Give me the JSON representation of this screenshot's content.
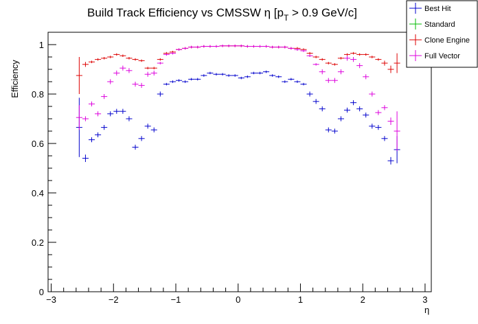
{
  "chart_data": {
    "type": "scatter",
    "title_main": "Build Track Efficiency vs CMSSW η [p",
    "title_sub": "T",
    "title_tail": " > 0.9 GeV/c]",
    "xlabel": "η",
    "ylabel": "Efficiency",
    "xlim": [
      -3.05,
      3.1
    ],
    "ylim": [
      0,
      1.05
    ],
    "x_ticks": [
      "−3",
      "−2",
      "−1",
      "0",
      "1",
      "2",
      "3"
    ],
    "y_ticks": [
      "0",
      "0.2",
      "0.4",
      "0.6",
      "0.8",
      "1"
    ],
    "x_bin_half_width": 0.05,
    "legend_position": "top-right",
    "series": [
      {
        "name": "Best Hit",
        "color": "#0000cc",
        "points": [
          {
            "x": -2.55,
            "y": 0.665,
            "err": 0.12
          },
          {
            "x": -2.45,
            "y": 0.54,
            "err": 0.015
          },
          {
            "x": -2.35,
            "y": 0.615,
            "err": 0.01
          },
          {
            "x": -2.25,
            "y": 0.635,
            "err": 0.01
          },
          {
            "x": -2.15,
            "y": 0.665,
            "err": 0.01
          },
          {
            "x": -2.05,
            "y": 0.72,
            "err": 0.01
          },
          {
            "x": -1.95,
            "y": 0.73,
            "err": 0.01
          },
          {
            "x": -1.85,
            "y": 0.73,
            "err": 0.01
          },
          {
            "x": -1.75,
            "y": 0.7,
            "err": 0.01
          },
          {
            "x": -1.65,
            "y": 0.585,
            "err": 0.01
          },
          {
            "x": -1.55,
            "y": 0.62,
            "err": 0.01
          },
          {
            "x": -1.45,
            "y": 0.67,
            "err": 0.01
          },
          {
            "x": -1.35,
            "y": 0.655,
            "err": 0.01
          },
          {
            "x": -1.25,
            "y": 0.8,
            "err": 0.01
          },
          {
            "x": -1.15,
            "y": 0.84,
            "err": 0.005
          },
          {
            "x": -1.05,
            "y": 0.85,
            "err": 0.005
          },
          {
            "x": -0.95,
            "y": 0.855,
            "err": 0.005
          },
          {
            "x": -0.85,
            "y": 0.85,
            "err": 0.005
          },
          {
            "x": -0.75,
            "y": 0.86,
            "err": 0.005
          },
          {
            "x": -0.65,
            "y": 0.86,
            "err": 0.005
          },
          {
            "x": -0.55,
            "y": 0.875,
            "err": 0.005
          },
          {
            "x": -0.45,
            "y": 0.885,
            "err": 0.005
          },
          {
            "x": -0.35,
            "y": 0.88,
            "err": 0.005
          },
          {
            "x": -0.25,
            "y": 0.88,
            "err": 0.005
          },
          {
            "x": -0.15,
            "y": 0.875,
            "err": 0.005
          },
          {
            "x": -0.05,
            "y": 0.875,
            "err": 0.005
          },
          {
            "x": 0.05,
            "y": 0.865,
            "err": 0.005
          },
          {
            "x": 0.15,
            "y": 0.87,
            "err": 0.005
          },
          {
            "x": 0.25,
            "y": 0.885,
            "err": 0.005
          },
          {
            "x": 0.35,
            "y": 0.885,
            "err": 0.005
          },
          {
            "x": 0.45,
            "y": 0.89,
            "err": 0.005
          },
          {
            "x": 0.55,
            "y": 0.875,
            "err": 0.005
          },
          {
            "x": 0.65,
            "y": 0.87,
            "err": 0.005
          },
          {
            "x": 0.75,
            "y": 0.85,
            "err": 0.005
          },
          {
            "x": 0.85,
            "y": 0.86,
            "err": 0.005
          },
          {
            "x": 0.95,
            "y": 0.85,
            "err": 0.005
          },
          {
            "x": 1.05,
            "y": 0.84,
            "err": 0.005
          },
          {
            "x": 1.15,
            "y": 0.8,
            "err": 0.01
          },
          {
            "x": 1.25,
            "y": 0.77,
            "err": 0.01
          },
          {
            "x": 1.35,
            "y": 0.74,
            "err": 0.01
          },
          {
            "x": 1.45,
            "y": 0.655,
            "err": 0.01
          },
          {
            "x": 1.55,
            "y": 0.65,
            "err": 0.01
          },
          {
            "x": 1.65,
            "y": 0.7,
            "err": 0.01
          },
          {
            "x": 1.75,
            "y": 0.735,
            "err": 0.01
          },
          {
            "x": 1.85,
            "y": 0.765,
            "err": 0.01
          },
          {
            "x": 1.95,
            "y": 0.74,
            "err": 0.01
          },
          {
            "x": 2.05,
            "y": 0.715,
            "err": 0.01
          },
          {
            "x": 2.15,
            "y": 0.67,
            "err": 0.01
          },
          {
            "x": 2.25,
            "y": 0.665,
            "err": 0.01
          },
          {
            "x": 2.35,
            "y": 0.62,
            "err": 0.01
          },
          {
            "x": 2.45,
            "y": 0.53,
            "err": 0.015
          },
          {
            "x": 2.55,
            "y": 0.575,
            "err": 0.055
          }
        ]
      },
      {
        "name": "Standard",
        "color": "#00bb00",
        "points": []
      },
      {
        "name": "Clone Engine",
        "color": "#dd0000",
        "points": [
          {
            "x": -2.55,
            "y": 0.875,
            "err": 0.075
          },
          {
            "x": -2.45,
            "y": 0.92,
            "err": 0.01
          },
          {
            "x": -2.35,
            "y": 0.93,
            "err": 0.005
          },
          {
            "x": -2.25,
            "y": 0.94,
            "err": 0.005
          },
          {
            "x": -2.15,
            "y": 0.945,
            "err": 0.005
          },
          {
            "x": -2.05,
            "y": 0.95,
            "err": 0.005
          },
          {
            "x": -1.95,
            "y": 0.96,
            "err": 0.005
          },
          {
            "x": -1.85,
            "y": 0.955,
            "err": 0.005
          },
          {
            "x": -1.75,
            "y": 0.945,
            "err": 0.005
          },
          {
            "x": -1.65,
            "y": 0.94,
            "err": 0.005
          },
          {
            "x": -1.55,
            "y": 0.935,
            "err": 0.005
          },
          {
            "x": -1.45,
            "y": 0.905,
            "err": 0.005
          },
          {
            "x": -1.35,
            "y": 0.905,
            "err": 0.005
          },
          {
            "x": -1.25,
            "y": 0.94,
            "err": 0.005
          },
          {
            "x": -1.15,
            "y": 0.965,
            "err": 0.005
          },
          {
            "x": -1.05,
            "y": 0.97,
            "err": 0.005
          },
          {
            "x": -0.95,
            "y": 0.98,
            "err": 0.005
          },
          {
            "x": -0.85,
            "y": 0.985,
            "err": 0.005
          },
          {
            "x": -0.75,
            "y": 0.99,
            "err": 0.005
          },
          {
            "x": -0.65,
            "y": 0.99,
            "err": 0.005
          },
          {
            "x": -0.55,
            "y": 0.993,
            "err": 0.005
          },
          {
            "x": -0.45,
            "y": 0.993,
            "err": 0.005
          },
          {
            "x": -0.35,
            "y": 0.993,
            "err": 0.005
          },
          {
            "x": -0.25,
            "y": 0.995,
            "err": 0.005
          },
          {
            "x": -0.15,
            "y": 0.995,
            "err": 0.005
          },
          {
            "x": -0.05,
            "y": 0.995,
            "err": 0.005
          },
          {
            "x": 0.05,
            "y": 0.995,
            "err": 0.005
          },
          {
            "x": 0.15,
            "y": 0.993,
            "err": 0.005
          },
          {
            "x": 0.25,
            "y": 0.993,
            "err": 0.005
          },
          {
            "x": 0.35,
            "y": 0.993,
            "err": 0.005
          },
          {
            "x": 0.45,
            "y": 0.993,
            "err": 0.005
          },
          {
            "x": 0.55,
            "y": 0.99,
            "err": 0.005
          },
          {
            "x": 0.65,
            "y": 0.99,
            "err": 0.005
          },
          {
            "x": 0.75,
            "y": 0.99,
            "err": 0.005
          },
          {
            "x": 0.85,
            "y": 0.985,
            "err": 0.005
          },
          {
            "x": 0.95,
            "y": 0.985,
            "err": 0.005
          },
          {
            "x": 1.05,
            "y": 0.98,
            "err": 0.005
          },
          {
            "x": 1.15,
            "y": 0.965,
            "err": 0.005
          },
          {
            "x": 1.25,
            "y": 0.95,
            "err": 0.005
          },
          {
            "x": 1.35,
            "y": 0.94,
            "err": 0.005
          },
          {
            "x": 1.45,
            "y": 0.925,
            "err": 0.005
          },
          {
            "x": 1.55,
            "y": 0.92,
            "err": 0.005
          },
          {
            "x": 1.65,
            "y": 0.945,
            "err": 0.005
          },
          {
            "x": 1.75,
            "y": 0.96,
            "err": 0.005
          },
          {
            "x": 1.85,
            "y": 0.965,
            "err": 0.005
          },
          {
            "x": 1.95,
            "y": 0.96,
            "err": 0.005
          },
          {
            "x": 2.05,
            "y": 0.96,
            "err": 0.005
          },
          {
            "x": 2.15,
            "y": 0.95,
            "err": 0.005
          },
          {
            "x": 2.25,
            "y": 0.94,
            "err": 0.005
          },
          {
            "x": 2.35,
            "y": 0.925,
            "err": 0.01
          },
          {
            "x": 2.45,
            "y": 0.9,
            "err": 0.015
          },
          {
            "x": 2.55,
            "y": 0.925,
            "err": 0.04
          }
        ]
      },
      {
        "name": "Full Vector",
        "color": "#dd00dd",
        "points": [
          {
            "x": -2.55,
            "y": 0.705,
            "err": 0.05
          },
          {
            "x": -2.45,
            "y": 0.7,
            "err": 0.01
          },
          {
            "x": -2.35,
            "y": 0.76,
            "err": 0.01
          },
          {
            "x": -2.25,
            "y": 0.72,
            "err": 0.01
          },
          {
            "x": -2.15,
            "y": 0.79,
            "err": 0.01
          },
          {
            "x": -2.05,
            "y": 0.85,
            "err": 0.01
          },
          {
            "x": -1.95,
            "y": 0.885,
            "err": 0.01
          },
          {
            "x": -1.85,
            "y": 0.905,
            "err": 0.01
          },
          {
            "x": -1.75,
            "y": 0.895,
            "err": 0.01
          },
          {
            "x": -1.65,
            "y": 0.84,
            "err": 0.01
          },
          {
            "x": -1.55,
            "y": 0.835,
            "err": 0.01
          },
          {
            "x": -1.45,
            "y": 0.88,
            "err": 0.01
          },
          {
            "x": -1.35,
            "y": 0.885,
            "err": 0.01
          },
          {
            "x": -1.25,
            "y": 0.925,
            "err": 0.005
          },
          {
            "x": -1.15,
            "y": 0.96,
            "err": 0.005
          },
          {
            "x": -1.05,
            "y": 0.965,
            "err": 0.005
          },
          {
            "x": -0.95,
            "y": 0.98,
            "err": 0.005
          },
          {
            "x": -0.85,
            "y": 0.985,
            "err": 0.005
          },
          {
            "x": -0.75,
            "y": 0.99,
            "err": 0.005
          },
          {
            "x": -0.65,
            "y": 0.99,
            "err": 0.005
          },
          {
            "x": -0.55,
            "y": 0.993,
            "err": 0.005
          },
          {
            "x": -0.45,
            "y": 0.993,
            "err": 0.005
          },
          {
            "x": -0.35,
            "y": 0.993,
            "err": 0.005
          },
          {
            "x": -0.25,
            "y": 0.995,
            "err": 0.005
          },
          {
            "x": -0.15,
            "y": 0.995,
            "err": 0.005
          },
          {
            "x": -0.05,
            "y": 0.995,
            "err": 0.005
          },
          {
            "x": 0.05,
            "y": 0.995,
            "err": 0.005
          },
          {
            "x": 0.15,
            "y": 0.993,
            "err": 0.005
          },
          {
            "x": 0.25,
            "y": 0.993,
            "err": 0.005
          },
          {
            "x": 0.35,
            "y": 0.993,
            "err": 0.005
          },
          {
            "x": 0.45,
            "y": 0.993,
            "err": 0.005
          },
          {
            "x": 0.55,
            "y": 0.99,
            "err": 0.005
          },
          {
            "x": 0.65,
            "y": 0.99,
            "err": 0.005
          },
          {
            "x": 0.75,
            "y": 0.99,
            "err": 0.005
          },
          {
            "x": 0.85,
            "y": 0.985,
            "err": 0.005
          },
          {
            "x": 0.95,
            "y": 0.98,
            "err": 0.005
          },
          {
            "x": 1.05,
            "y": 0.975,
            "err": 0.005
          },
          {
            "x": 1.15,
            "y": 0.955,
            "err": 0.005
          },
          {
            "x": 1.25,
            "y": 0.92,
            "err": 0.005
          },
          {
            "x": 1.35,
            "y": 0.89,
            "err": 0.01
          },
          {
            "x": 1.45,
            "y": 0.855,
            "err": 0.01
          },
          {
            "x": 1.55,
            "y": 0.855,
            "err": 0.01
          },
          {
            "x": 1.65,
            "y": 0.89,
            "err": 0.01
          },
          {
            "x": 1.75,
            "y": 0.945,
            "err": 0.01
          },
          {
            "x": 1.85,
            "y": 0.94,
            "err": 0.01
          },
          {
            "x": 1.95,
            "y": 0.915,
            "err": 0.01
          },
          {
            "x": 2.05,
            "y": 0.87,
            "err": 0.01
          },
          {
            "x": 2.15,
            "y": 0.8,
            "err": 0.01
          },
          {
            "x": 2.25,
            "y": 0.725,
            "err": 0.01
          },
          {
            "x": 2.35,
            "y": 0.745,
            "err": 0.01
          },
          {
            "x": 2.45,
            "y": 0.69,
            "err": 0.015
          },
          {
            "x": 2.55,
            "y": 0.65,
            "err": 0.08
          }
        ]
      }
    ]
  }
}
